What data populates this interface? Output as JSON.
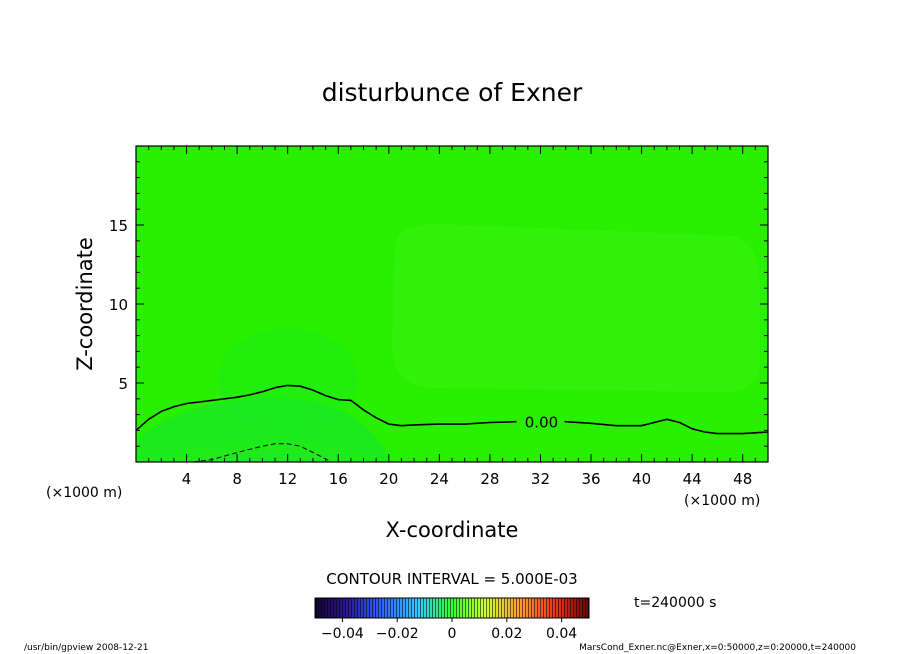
{
  "chart_data": {
    "type": "contour",
    "title": "disturbunce of Exner",
    "xlabel": "X-coordinate",
    "ylabel": "Z-coordinate",
    "x_unit_label": "(×1000 m)",
    "x_unit_label_right": "(×1000 m)",
    "xlim": [
      0,
      50
    ],
    "ylim": [
      0,
      20
    ],
    "x_ticks": [
      4,
      8,
      12,
      16,
      20,
      24,
      28,
      32,
      36,
      40,
      44,
      48
    ],
    "y_ticks": [
      5,
      10,
      15
    ],
    "contour_interval_text": "CONTOUR INTERVAL = 5.000E-03",
    "time_text": "t=240000 s",
    "colorbar": {
      "range": [
        -0.05,
        0.05
      ],
      "tick_labels": [
        "−0.04",
        "−0.02",
        "0",
        "0.02",
        "0.04"
      ],
      "tick_values": [
        -0.04,
        -0.02,
        0,
        0.02,
        0.04
      ]
    },
    "contours": [
      {
        "level": 0.0,
        "label": "0.00",
        "style": "solid",
        "x": [
          0,
          1,
          2,
          3,
          4,
          5,
          6,
          7,
          8,
          9,
          10,
          11,
          12,
          13,
          14,
          15,
          16,
          17,
          18,
          19,
          20,
          21,
          22,
          24,
          26,
          28,
          30,
          32,
          34,
          36,
          38,
          40,
          41,
          42,
          43,
          44,
          45,
          46,
          48,
          50
        ],
        "y": [
          2.0,
          2.7,
          3.2,
          3.5,
          3.7,
          3.8,
          3.9,
          4.0,
          4.1,
          4.25,
          4.45,
          4.7,
          4.85,
          4.8,
          4.55,
          4.2,
          3.95,
          3.9,
          3.3,
          2.8,
          2.4,
          2.3,
          2.35,
          2.4,
          2.4,
          2.5,
          2.55,
          2.55,
          2.55,
          2.45,
          2.3,
          2.3,
          2.5,
          2.7,
          2.5,
          2.1,
          1.9,
          1.8,
          1.8,
          1.9
        ]
      },
      {
        "level": -0.005,
        "label": "",
        "style": "dashed",
        "x": [
          4.5,
          6,
          8,
          10,
          11,
          12,
          13,
          14,
          15.5
        ],
        "y": [
          0,
          0.15,
          0.6,
          1.0,
          1.15,
          1.15,
          1.0,
          0.6,
          0
        ]
      }
    ]
  },
  "footer": {
    "left": "/usr/bin/gpview   2008-12-21",
    "right": "MarsCond_Exner.nc@Exner,x=0:50000,z=0:20000,t=240000"
  },
  "colors": {
    "field_background": "#29f000",
    "field_upper_region": "#33f20a",
    "field_near_surface": "#12e83a",
    "contour_line": "#000000"
  }
}
